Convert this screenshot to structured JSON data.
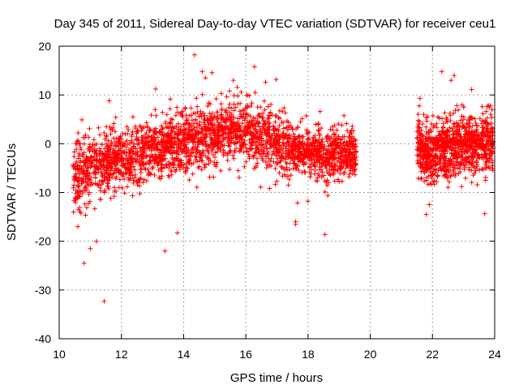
{
  "chart_data": {
    "type": "scatter",
    "title": "Day 345 of 2011, Sidereal Day-to-day VTEC variation (SDTVAR) for receiver ceu1",
    "xlabel": "GPS time / hours",
    "ylabel": "SDTVAR / TECUs",
    "xlim": [
      10,
      24
    ],
    "ylim": [
      -40,
      20
    ],
    "x_ticks": [
      10,
      12,
      14,
      16,
      18,
      20,
      22,
      24
    ],
    "y_ticks": [
      -40,
      -30,
      -20,
      -10,
      0,
      10,
      20
    ],
    "x_tick_labels": [
      "10",
      "12",
      "14",
      "16",
      "18",
      "20",
      "22",
      "24"
    ],
    "y_tick_labels": [
      "-40",
      "-30",
      "-20",
      "-10",
      "0",
      "10",
      "20"
    ],
    "grid": true,
    "marker": "+",
    "color": "#ff0000",
    "series": [
      {
        "name": "SDTVAR",
        "trend": [
          [
            10.45,
            -7
          ],
          [
            10.8,
            -5.5
          ],
          [
            11.5,
            -3.5
          ],
          [
            12.5,
            -2
          ],
          [
            13.5,
            -0.5
          ],
          [
            14.5,
            1
          ],
          [
            15.5,
            2.5
          ],
          [
            16.0,
            2.5
          ],
          [
            16.5,
            1.5
          ],
          [
            17.5,
            -1
          ],
          [
            18.5,
            -2.5
          ],
          [
            19.5,
            -2
          ]
        ],
        "trend2": [
          [
            21.5,
            -1
          ],
          [
            22.0,
            -2
          ],
          [
            22.5,
            -1
          ],
          [
            23.0,
            0
          ],
          [
            23.5,
            0
          ],
          [
            23.95,
            0
          ]
        ],
        "outliers": [
          [
            14.35,
            18.2
          ],
          [
            14.6,
            14.8
          ],
          [
            14.7,
            13.5
          ],
          [
            15.6,
            13.0
          ],
          [
            13.1,
            11.2
          ],
          [
            11.45,
            -32.3
          ],
          [
            10.8,
            -24.5
          ],
          [
            11.0,
            -21.5
          ],
          [
            13.4,
            -22.0
          ],
          [
            13.8,
            -18.3
          ],
          [
            17.6,
            -16.0
          ],
          [
            17.6,
            -16.5
          ],
          [
            22.3,
            14.8
          ],
          [
            22.6,
            13.0
          ],
          [
            22.7,
            14.0
          ],
          [
            21.8,
            -14.5
          ],
          [
            21.9,
            -12.5
          ],
          [
            21.6,
            9.3
          ],
          [
            11.2,
            -20.0
          ],
          [
            10.6,
            -17.0
          ]
        ],
        "n_points": 6500
      }
    ]
  }
}
